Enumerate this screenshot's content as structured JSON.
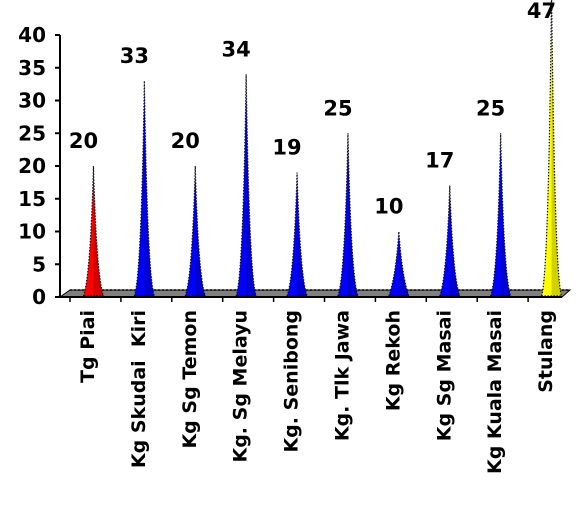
{
  "chart_data": {
    "type": "bar",
    "title": "",
    "xlabel": "",
    "ylabel": "",
    "ylim": [
      0,
      40
    ],
    "yticks": [
      "0",
      "5",
      "10",
      "15",
      "20",
      "25",
      "30",
      "35",
      "40"
    ],
    "grid": false,
    "legend": "none",
    "bar_shape": "spike",
    "categories": [
      "Tg Piai",
      "Kg Skudai  Kiri",
      "Kg Sg Temon",
      "Kg. Sg Melayu",
      "Kg. Senibong",
      "Kg. Tlk Jawa",
      "Kg Rekoh",
      "Kg Sg Masai",
      "Kg Kuala Masai",
      "Stulang"
    ],
    "values": [
      20,
      33,
      20,
      34,
      19,
      25,
      10,
      17,
      25,
      47
    ],
    "data_labels": [
      "20",
      "33",
      "20",
      "34",
      "19",
      "25",
      "10",
      "17",
      "25",
      "47"
    ],
    "colors": [
      "#ff0000",
      "#0000ff",
      "#0000ff",
      "#0000ff",
      "#0000ff",
      "#0000ff",
      "#0000ff",
      "#0000ff",
      "#0000ff",
      "#ffff00"
    ],
    "floor_color": "#808080"
  }
}
